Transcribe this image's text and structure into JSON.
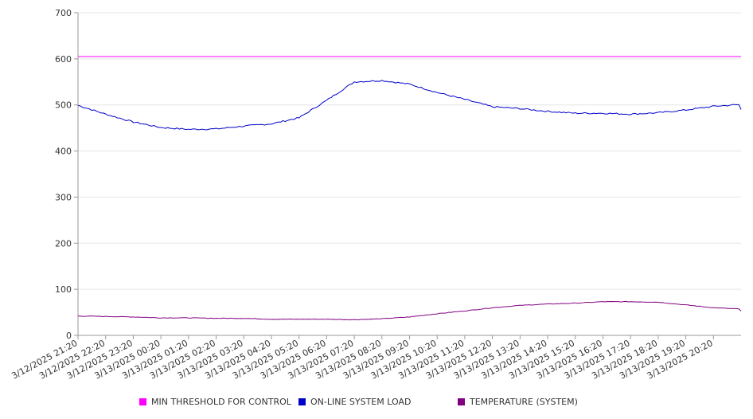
{
  "chart_data": {
    "type": "line",
    "title": "",
    "xlabel": "",
    "ylabel": "",
    "ylim": [
      0,
      700
    ],
    "yticks": [
      0,
      100,
      200,
      300,
      400,
      500,
      600,
      700
    ],
    "grid": true,
    "legend_position": "bottom",
    "x": [
      "3/12/2025 21:20",
      "3/12/2025 22:20",
      "3/12/2025 23:20",
      "3/13/2025 00:20",
      "3/13/2025 01:20",
      "3/13/2025 02:20",
      "3/13/2025 03:20",
      "3/13/2025 04:20",
      "3/13/2025 05:20",
      "3/13/2025 06:20",
      "3/13/2025 07:20",
      "3/13/2025 08:20",
      "3/13/2025 09:20",
      "3/13/2025 10:20",
      "3/13/2025 11:20",
      "3/13/2025 12:20",
      "3/13/2025 13:20",
      "3/13/2025 14:20",
      "3/13/2025 15:20",
      "3/13/2025 16:20",
      "3/13/2025 17:20",
      "3/13/2025 18:20",
      "3/13/2025 19:20",
      "3/13/2025 20:20"
    ],
    "series": [
      {
        "name": "MIN THRESHOLD FOR CONTROL",
        "color": "#ff00ff",
        "values": [
          605,
          605,
          605,
          605,
          605,
          605,
          605,
          605,
          605,
          605,
          605,
          605,
          605,
          605,
          605,
          605,
          605,
          605,
          605,
          605,
          605,
          605,
          605,
          605
        ]
      },
      {
        "name": "ON-LINE SYSTEM LOAD",
        "color": "#0000cc",
        "values": [
          499,
          480,
          463,
          451,
          447,
          448,
          454,
          459,
          472,
          510,
          550,
          553,
          545,
          527,
          512,
          496,
          492,
          486,
          482,
          482,
          480,
          483,
          489,
          497
        ]
      },
      {
        "name": "TEMPERATURE (SYSTEM)",
        "color": "#800080",
        "values": [
          42,
          41,
          40,
          38,
          38,
          37,
          37,
          35,
          35,
          35,
          34,
          36,
          40,
          47,
          53,
          60,
          65,
          68,
          70,
          73,
          73,
          72,
          66,
          60
        ]
      }
    ]
  }
}
